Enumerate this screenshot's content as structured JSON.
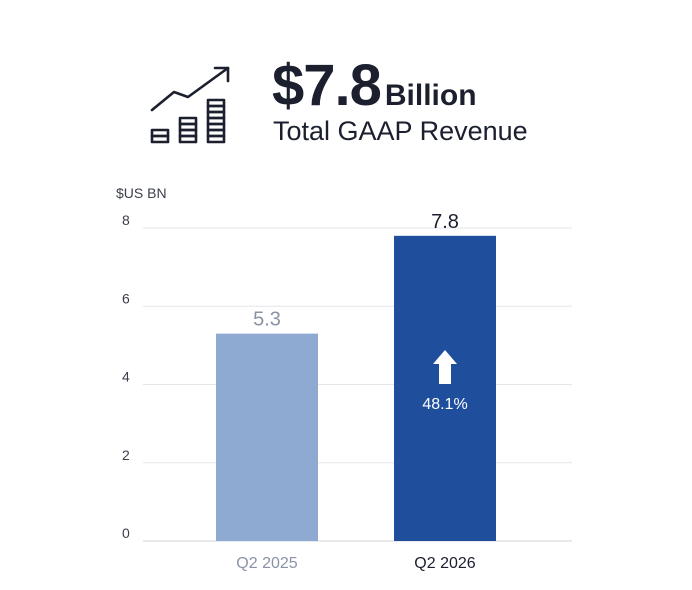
{
  "header": {
    "value": "$7.8",
    "unit": "Billion",
    "subtitle": "Total GAAP Revenue",
    "icon": "growth-bars-icon"
  },
  "chart_data": {
    "type": "bar",
    "ylabel": "$US BN",
    "ylim": [
      0,
      8
    ],
    "yticks": [
      0,
      2,
      4,
      6,
      8
    ],
    "grid": true,
    "categories": [
      "Q2 2025",
      "Q2 2026"
    ],
    "values": [
      5.3,
      7.8
    ],
    "value_labels": [
      "5.3",
      "7.8"
    ],
    "colors": [
      "#8eaad3",
      "#1f4f9c"
    ],
    "value_label_colors": [
      "#8a93a6",
      "#1b1f2e"
    ],
    "category_label_colors": [
      "#8a93a6",
      "#1b1f2e"
    ],
    "annotation": {
      "category": "Q2 2026",
      "text": "48.1%",
      "icon": "up-arrow-icon"
    }
  }
}
